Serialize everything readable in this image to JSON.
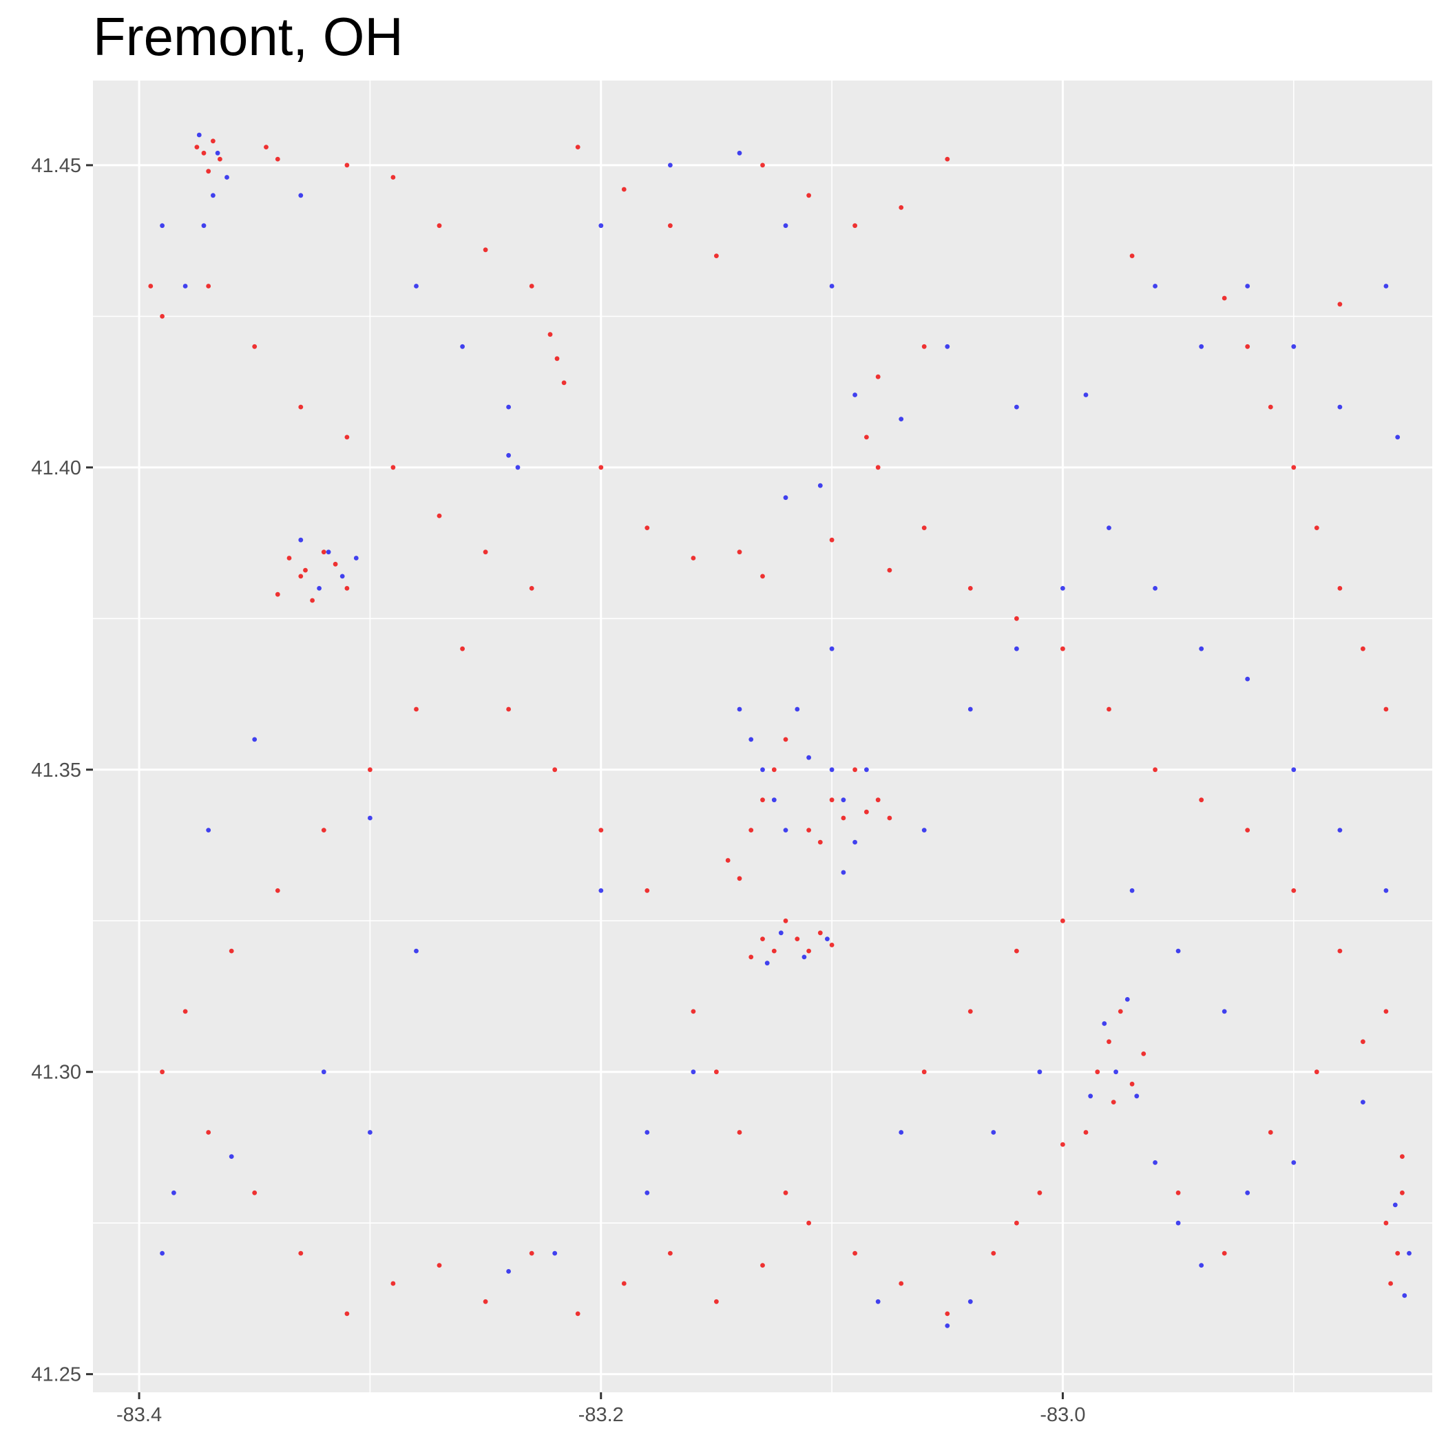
{
  "chart_data": {
    "type": "scatter",
    "title": "Fremont, OH",
    "xlabel": "",
    "ylabel": "",
    "xlim": [
      -83.42,
      -82.84
    ],
    "ylim": [
      41.247,
      41.464
    ],
    "x_ticks": [
      -83.4,
      -83.2,
      -83.0
    ],
    "x_tick_labels": [
      "-83.4",
      "-83.2",
      "-83.0"
    ],
    "y_ticks": [
      41.25,
      41.3,
      41.35,
      41.4,
      41.45
    ],
    "y_tick_labels": [
      "41.25",
      "41.30",
      "41.35",
      "41.40",
      "41.45"
    ],
    "grid": true,
    "legend": "none",
    "colors": {
      "background": "#EBEBEB",
      "grid": "#FFFFFF",
      "series_a": "#EE1111",
      "series_b": "#2222EE"
    },
    "series": [
      {
        "color": "#EE1111",
        "points": [
          [
            -83.375,
            41.453
          ],
          [
            -83.372,
            41.452
          ],
          [
            -83.368,
            41.454
          ],
          [
            -83.365,
            41.451
          ],
          [
            -83.37,
            41.449
          ],
          [
            -83.345,
            41.453
          ],
          [
            -83.34,
            41.451
          ],
          [
            -83.31,
            41.45
          ],
          [
            -83.29,
            41.448
          ],
          [
            -83.27,
            41.44
          ],
          [
            -83.25,
            41.436
          ],
          [
            -83.23,
            41.43
          ],
          [
            -83.21,
            41.453
          ],
          [
            -83.19,
            41.446
          ],
          [
            -83.17,
            41.44
          ],
          [
            -83.15,
            41.435
          ],
          [
            -83.13,
            41.45
          ],
          [
            -83.11,
            41.445
          ],
          [
            -83.09,
            41.44
          ],
          [
            -83.07,
            41.443
          ],
          [
            -83.05,
            41.451
          ],
          [
            -82.97,
            41.435
          ],
          [
            -83.395,
            41.43
          ],
          [
            -83.39,
            41.425
          ],
          [
            -83.37,
            41.43
          ],
          [
            -83.35,
            41.42
          ],
          [
            -83.33,
            41.41
          ],
          [
            -83.31,
            41.405
          ],
          [
            -83.29,
            41.4
          ],
          [
            -83.27,
            41.392
          ],
          [
            -83.25,
            41.386
          ],
          [
            -83.23,
            41.38
          ],
          [
            -83.222,
            41.422
          ],
          [
            -83.219,
            41.418
          ],
          [
            -83.216,
            41.414
          ],
          [
            -83.2,
            41.4
          ],
          [
            -83.18,
            41.39
          ],
          [
            -83.16,
            41.385
          ],
          [
            -83.14,
            41.386
          ],
          [
            -83.13,
            41.382
          ],
          [
            -83.1,
            41.388
          ],
          [
            -83.085,
            41.405
          ],
          [
            -83.08,
            41.4
          ],
          [
            -83.075,
            41.383
          ],
          [
            -83.06,
            41.39
          ],
          [
            -83.04,
            41.38
          ],
          [
            -83.02,
            41.375
          ],
          [
            -83.0,
            41.37
          ],
          [
            -82.98,
            41.36
          ],
          [
            -82.96,
            41.35
          ],
          [
            -82.94,
            41.345
          ],
          [
            -82.92,
            41.34
          ],
          [
            -82.9,
            41.33
          ],
          [
            -82.88,
            41.32
          ],
          [
            -82.86,
            41.31
          ],
          [
            -82.853,
            41.286
          ],
          [
            -82.853,
            41.28
          ],
          [
            -82.855,
            41.27
          ],
          [
            -82.858,
            41.265
          ],
          [
            -82.86,
            41.275
          ],
          [
            -83.335,
            41.385
          ],
          [
            -83.33,
            41.382
          ],
          [
            -83.325,
            41.378
          ],
          [
            -83.32,
            41.386
          ],
          [
            -83.315,
            41.384
          ],
          [
            -83.31,
            41.38
          ],
          [
            -83.34,
            41.379
          ],
          [
            -83.328,
            41.383
          ],
          [
            -83.145,
            41.335
          ],
          [
            -83.14,
            41.332
          ],
          [
            -83.135,
            41.34
          ],
          [
            -83.13,
            41.345
          ],
          [
            -83.125,
            41.35
          ],
          [
            -83.12,
            41.355
          ],
          [
            -83.11,
            41.34
          ],
          [
            -83.105,
            41.338
          ],
          [
            -83.1,
            41.345
          ],
          [
            -83.095,
            41.342
          ],
          [
            -83.09,
            41.35
          ],
          [
            -83.085,
            41.343
          ],
          [
            -83.08,
            41.345
          ],
          [
            -83.075,
            41.342
          ],
          [
            -83.13,
            41.322
          ],
          [
            -83.125,
            41.32
          ],
          [
            -83.12,
            41.325
          ],
          [
            -83.115,
            41.322
          ],
          [
            -83.11,
            41.32
          ],
          [
            -83.105,
            41.323
          ],
          [
            -83.135,
            41.319
          ],
          [
            -83.1,
            41.321
          ],
          [
            -82.985,
            41.3
          ],
          [
            -82.98,
            41.305
          ],
          [
            -82.975,
            41.31
          ],
          [
            -82.97,
            41.298
          ],
          [
            -82.965,
            41.303
          ],
          [
            -82.99,
            41.29
          ],
          [
            -82.978,
            41.295
          ],
          [
            -83.0,
            41.288
          ],
          [
            -83.01,
            41.28
          ],
          [
            -83.02,
            41.275
          ],
          [
            -83.03,
            41.27
          ],
          [
            -83.05,
            41.26
          ],
          [
            -83.07,
            41.265
          ],
          [
            -83.09,
            41.27
          ],
          [
            -83.11,
            41.275
          ],
          [
            -83.13,
            41.268
          ],
          [
            -83.15,
            41.262
          ],
          [
            -83.17,
            41.27
          ],
          [
            -83.19,
            41.265
          ],
          [
            -83.21,
            41.26
          ],
          [
            -83.23,
            41.27
          ],
          [
            -83.25,
            41.262
          ],
          [
            -83.27,
            41.268
          ],
          [
            -83.29,
            41.265
          ],
          [
            -83.31,
            41.26
          ],
          [
            -83.33,
            41.27
          ],
          [
            -83.35,
            41.28
          ],
          [
            -83.37,
            41.29
          ],
          [
            -83.39,
            41.3
          ],
          [
            -83.38,
            41.31
          ],
          [
            -83.36,
            41.32
          ],
          [
            -83.34,
            41.33
          ],
          [
            -83.32,
            41.34
          ],
          [
            -83.3,
            41.35
          ],
          [
            -83.28,
            41.36
          ],
          [
            -83.26,
            41.37
          ],
          [
            -83.24,
            41.36
          ],
          [
            -83.22,
            41.35
          ],
          [
            -83.2,
            41.34
          ],
          [
            -83.18,
            41.33
          ],
          [
            -83.16,
            41.31
          ],
          [
            -83.15,
            41.3
          ],
          [
            -83.14,
            41.29
          ],
          [
            -83.12,
            41.28
          ],
          [
            -83.06,
            41.3
          ],
          [
            -83.04,
            41.31
          ],
          [
            -83.02,
            41.32
          ],
          [
            -83.0,
            41.325
          ],
          [
            -82.95,
            41.28
          ],
          [
            -82.93,
            41.27
          ],
          [
            -82.91,
            41.29
          ],
          [
            -82.89,
            41.3
          ],
          [
            -82.87,
            41.305
          ],
          [
            -82.86,
            41.36
          ],
          [
            -82.87,
            41.37
          ],
          [
            -82.88,
            41.38
          ],
          [
            -82.89,
            41.39
          ],
          [
            -82.9,
            41.4
          ],
          [
            -82.91,
            41.41
          ],
          [
            -82.92,
            41.42
          ],
          [
            -82.88,
            41.427
          ],
          [
            -82.93,
            41.428
          ],
          [
            -83.06,
            41.42
          ],
          [
            -83.08,
            41.415
          ]
        ]
      },
      {
        "color": "#2222EE",
        "points": [
          [
            -83.374,
            41.455
          ],
          [
            -83.366,
            41.452
          ],
          [
            -83.362,
            41.448
          ],
          [
            -83.368,
            41.445
          ],
          [
            -83.372,
            41.44
          ],
          [
            -83.39,
            41.44
          ],
          [
            -83.38,
            41.43
          ],
          [
            -83.33,
            41.445
          ],
          [
            -83.28,
            41.43
          ],
          [
            -83.26,
            41.42
          ],
          [
            -83.24,
            41.41
          ],
          [
            -83.24,
            41.402
          ],
          [
            -83.236,
            41.4
          ],
          [
            -83.2,
            41.44
          ],
          [
            -83.17,
            41.45
          ],
          [
            -83.14,
            41.452
          ],
          [
            -83.12,
            41.44
          ],
          [
            -83.1,
            41.43
          ],
          [
            -83.09,
            41.412
          ],
          [
            -83.07,
            41.408
          ],
          [
            -83.05,
            41.42
          ],
          [
            -83.02,
            41.41
          ],
          [
            -82.99,
            41.412
          ],
          [
            -82.96,
            41.43
          ],
          [
            -82.94,
            41.42
          ],
          [
            -82.92,
            41.43
          ],
          [
            -82.9,
            41.42
          ],
          [
            -82.88,
            41.41
          ],
          [
            -82.86,
            41.43
          ],
          [
            -82.855,
            41.405
          ],
          [
            -83.33,
            41.388
          ],
          [
            -83.322,
            41.38
          ],
          [
            -83.318,
            41.386
          ],
          [
            -83.312,
            41.382
          ],
          [
            -83.306,
            41.385
          ],
          [
            -83.14,
            41.36
          ],
          [
            -83.135,
            41.355
          ],
          [
            -83.13,
            41.35
          ],
          [
            -83.125,
            41.345
          ],
          [
            -83.12,
            41.34
          ],
          [
            -83.115,
            41.36
          ],
          [
            -83.11,
            41.352
          ],
          [
            -83.1,
            41.35
          ],
          [
            -83.095,
            41.345
          ],
          [
            -83.09,
            41.338
          ],
          [
            -83.085,
            41.35
          ],
          [
            -83.095,
            41.333
          ],
          [
            -83.12,
            41.395
          ],
          [
            -83.105,
            41.397
          ],
          [
            -83.1,
            41.37
          ],
          [
            -83.128,
            41.318
          ],
          [
            -83.122,
            41.323
          ],
          [
            -83.112,
            41.319
          ],
          [
            -83.102,
            41.322
          ],
          [
            -82.982,
            41.308
          ],
          [
            -82.977,
            41.3
          ],
          [
            -82.972,
            41.312
          ],
          [
            -82.968,
            41.296
          ],
          [
            -82.988,
            41.296
          ],
          [
            -82.96,
            41.285
          ],
          [
            -82.95,
            41.275
          ],
          [
            -82.94,
            41.268
          ],
          [
            -82.92,
            41.28
          ],
          [
            -82.9,
            41.285
          ],
          [
            -82.85,
            41.27
          ],
          [
            -82.852,
            41.263
          ],
          [
            -82.856,
            41.278
          ],
          [
            -82.87,
            41.295
          ],
          [
            -83.08,
            41.262
          ],
          [
            -83.05,
            41.258
          ],
          [
            -83.04,
            41.262
          ],
          [
            -83.18,
            41.28
          ],
          [
            -83.22,
            41.27
          ],
          [
            -83.24,
            41.267
          ],
          [
            -83.3,
            41.29
          ],
          [
            -83.32,
            41.3
          ],
          [
            -83.36,
            41.286
          ],
          [
            -83.39,
            41.27
          ],
          [
            -83.385,
            41.28
          ],
          [
            -83.37,
            41.34
          ],
          [
            -83.35,
            41.355
          ],
          [
            -83.3,
            41.342
          ],
          [
            -83.28,
            41.32
          ],
          [
            -83.2,
            41.33
          ],
          [
            -83.18,
            41.29
          ],
          [
            -83.16,
            41.3
          ],
          [
            -83.06,
            41.34
          ],
          [
            -83.04,
            41.36
          ],
          [
            -83.02,
            41.37
          ],
          [
            -83.0,
            41.38
          ],
          [
            -82.98,
            41.39
          ],
          [
            -82.96,
            41.38
          ],
          [
            -82.94,
            41.37
          ],
          [
            -82.92,
            41.365
          ],
          [
            -82.9,
            41.35
          ],
          [
            -82.88,
            41.34
          ],
          [
            -82.86,
            41.33
          ],
          [
            -82.93,
            41.31
          ],
          [
            -82.95,
            41.32
          ],
          [
            -82.97,
            41.33
          ],
          [
            -83.01,
            41.3
          ],
          [
            -83.03,
            41.29
          ],
          [
            -83.07,
            41.29
          ]
        ]
      }
    ]
  }
}
